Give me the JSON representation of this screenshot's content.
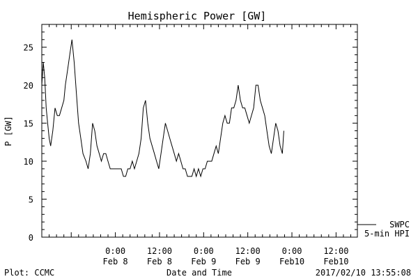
{
  "chart_data": {
    "type": "line",
    "title": "Hemispheric Power [GW]",
    "xlabel": "Date and Time",
    "ylabel": "P [GW]",
    "ylim": [
      0,
      28
    ],
    "xlim_hours": [
      -10,
      12.9
    ],
    "yticks": [
      0,
      5,
      10,
      15,
      20,
      25
    ],
    "xtick_labels": [
      {
        "hour": 0,
        "time": "0:00",
        "date": "Feb 8"
      },
      {
        "hour": 6,
        "time": "12:00",
        "date": "Feb 8"
      },
      {
        "hour": 12,
        "time": "0:00",
        "date": "Feb 9"
      },
      {
        "hour": 18,
        "time": "12:00",
        "date": "Feb 9"
      },
      {
        "hour": 24,
        "time": "0:00",
        "date": "Feb10"
      },
      {
        "hour": 30,
        "time": "12:00",
        "date": "Feb10"
      }
    ],
    "series": [
      {
        "name": "SWPC 5-min HPI",
        "x": [
          0,
          0.2,
          0.4,
          0.6,
          0.8,
          1.0,
          1.2,
          1.5,
          1.8,
          2.1,
          2.4,
          2.7,
          3.0,
          3.2,
          3.5,
          3.8,
          4.1,
          4.4,
          4.7,
          5.0,
          5.3,
          5.6,
          6.0,
          6.3,
          6.6,
          6.9,
          7.2,
          7.5,
          7.8,
          8.1,
          8.4,
          8.7,
          9.0,
          9.3,
          9.6,
          9.9,
          10.2,
          10.5,
          10.8,
          11.1,
          11.4,
          11.7,
          12.0,
          12.3,
          12.6,
          12.9,
          13.2,
          13.5,
          13.8,
          14.1,
          14.4,
          14.7,
          15.0,
          15.3,
          15.6,
          15.9,
          16.2,
          16.5,
          16.8,
          17.1,
          17.4,
          17.7,
          18.0,
          18.3,
          18.6,
          18.9,
          19.2,
          19.5,
          19.8,
          20.1,
          20.4,
          20.7,
          21.0,
          21.3,
          21.6,
          21.9,
          22.2,
          22.5,
          22.8,
          23.1,
          23.4,
          23.7,
          24.0,
          24.3,
          24.6,
          24.9,
          25.2,
          25.5,
          25.8,
          26.1,
          26.4,
          26.7,
          27.0,
          27.3,
          27.6,
          27.9,
          28.2,
          28.5,
          28.8,
          29.1,
          29.4,
          29.7,
          30.0,
          30.3,
          30.6,
          30.9,
          31.2,
          31.5,
          31.8,
          32.1,
          32.4,
          32.7,
          32.9
        ],
        "y": [
          20,
          23,
          21,
          17,
          15,
          13,
          12,
          14,
          17,
          16,
          16,
          17,
          18,
          20,
          22,
          24,
          26,
          23,
          19,
          15,
          13,
          11,
          10,
          9,
          11,
          15,
          14,
          12,
          11,
          10,
          11,
          11,
          10,
          9,
          9,
          9,
          9,
          9,
          9,
          8,
          8,
          9,
          9,
          10,
          9,
          10,
          11,
          13,
          17,
          18,
          15,
          13,
          12,
          11,
          10,
          9,
          11,
          13,
          15,
          14,
          13,
          12,
          11,
          10,
          11,
          10,
          9,
          9,
          8,
          8,
          8,
          9,
          8,
          9,
          8,
          9,
          9,
          10,
          10,
          10,
          11,
          12,
          11,
          13,
          15,
          16,
          15,
          15,
          17,
          17,
          18,
          20,
          18,
          17,
          17,
          16,
          15,
          16,
          17,
          20,
          20,
          18,
          17,
          16,
          14,
          12,
          11,
          13,
          15,
          14,
          12,
          11,
          14
        ],
        "x2": [
          32.9
        ],
        "y2": [
          14
        ]
      }
    ],
    "legend": {
      "position": "bottom-right",
      "lines": [
        "SWPC",
        "5-min HPI"
      ]
    },
    "footer": {
      "left": "Plot: CCMC",
      "right": "2017/02/10 13:55:08"
    }
  }
}
